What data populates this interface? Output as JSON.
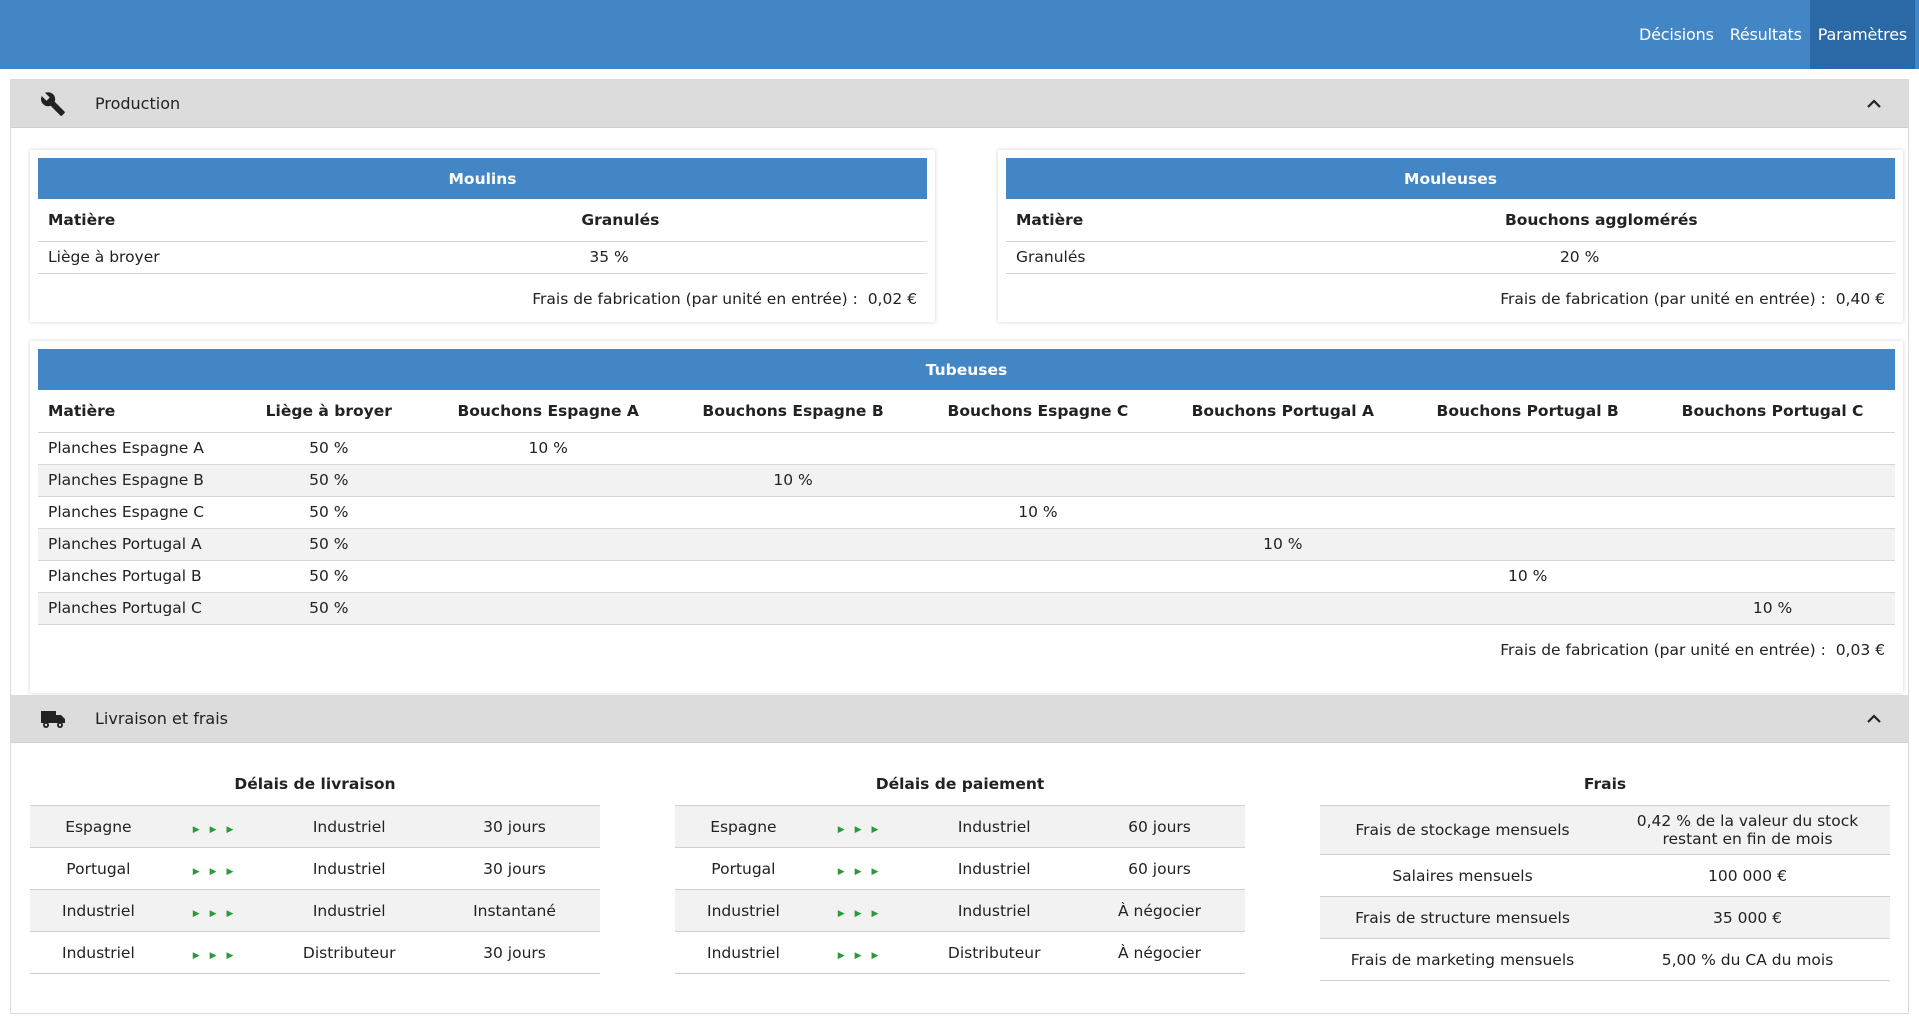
{
  "nav": {
    "decisions": "Décisions",
    "resultats": "Résultats",
    "parametres": "Paramètres"
  },
  "sections": {
    "production": "Production",
    "livraison": "Livraison et frais"
  },
  "moulins": {
    "title": "Moulins",
    "col_matiere": "Matière",
    "col_output": "Granulés",
    "row_input": "Liège à broyer",
    "row_value": "35 %",
    "fees_label": "Frais de fabrication (par unité en entrée) :",
    "fees_value": "0,02 €"
  },
  "mouleuses": {
    "title": "Mouleuses",
    "col_matiere": "Matière",
    "col_output": "Bouchons agglomérés",
    "row_input": "Granulés",
    "row_value": "20 %",
    "fees_label": "Frais de fabrication (par unité en entrée) :",
    "fees_value": "0,40 €"
  },
  "tubeuses": {
    "title": "Tubeuses",
    "headers": [
      "Matière",
      "Liège à broyer",
      "Bouchons Espagne A",
      "Bouchons Espagne B",
      "Bouchons Espagne C",
      "Bouchons Portugal A",
      "Bouchons Portugal B",
      "Bouchons Portugal C"
    ],
    "rows": [
      [
        "Planches Espagne A",
        "50 %",
        "10 %",
        "",
        "",
        "",
        "",
        ""
      ],
      [
        "Planches Espagne B",
        "50 %",
        "",
        "10 %",
        "",
        "",
        "",
        ""
      ],
      [
        "Planches Espagne C",
        "50 %",
        "",
        "",
        "10 %",
        "",
        "",
        ""
      ],
      [
        "Planches Portugal A",
        "50 %",
        "",
        "",
        "",
        "10 %",
        "",
        ""
      ],
      [
        "Planches Portugal B",
        "50 %",
        "",
        "",
        "",
        "",
        "10 %",
        ""
      ],
      [
        "Planches Portugal C",
        "50 %",
        "",
        "",
        "",
        "",
        "",
        "10 %"
      ]
    ],
    "fees_label": "Frais de fabrication (par unité en entrée) :",
    "fees_value": "0,03 €"
  },
  "delais_livraison": {
    "title": "Délais de livraison",
    "rows": [
      [
        "Espagne",
        "Industriel",
        "30 jours"
      ],
      [
        "Portugal",
        "Industriel",
        "30 jours"
      ],
      [
        "Industriel",
        "Industriel",
        "Instantané"
      ],
      [
        "Industriel",
        "Distributeur",
        "30 jours"
      ]
    ]
  },
  "delais_paiement": {
    "title": "Délais de paiement",
    "rows": [
      [
        "Espagne",
        "Industriel",
        "60 jours"
      ],
      [
        "Portugal",
        "Industriel",
        "60 jours"
      ],
      [
        "Industriel",
        "Industriel",
        "À négocier"
      ],
      [
        "Industriel",
        "Distributeur",
        "À négocier"
      ]
    ]
  },
  "frais": {
    "title": "Frais",
    "rows": [
      [
        "Frais de stockage mensuels",
        "0,42 % de la valeur du stock restant en fin de mois"
      ],
      [
        "Salaires mensuels",
        "100 000 €"
      ],
      [
        "Frais de structure mensuels",
        "35 000 €"
      ],
      [
        "Frais de marketing mensuels",
        "5,00 % du CA du mois"
      ]
    ]
  },
  "icons": {
    "production": "wrench-icon",
    "livraison": "truck-icon",
    "collapse": "chevron-up-icon",
    "flow": "arrow-right-icon"
  },
  "colors": {
    "header": "#4286c6",
    "active_nav": "#2a68a6",
    "arrow": "#2a9a3a",
    "section": "#dcdcdc"
  }
}
